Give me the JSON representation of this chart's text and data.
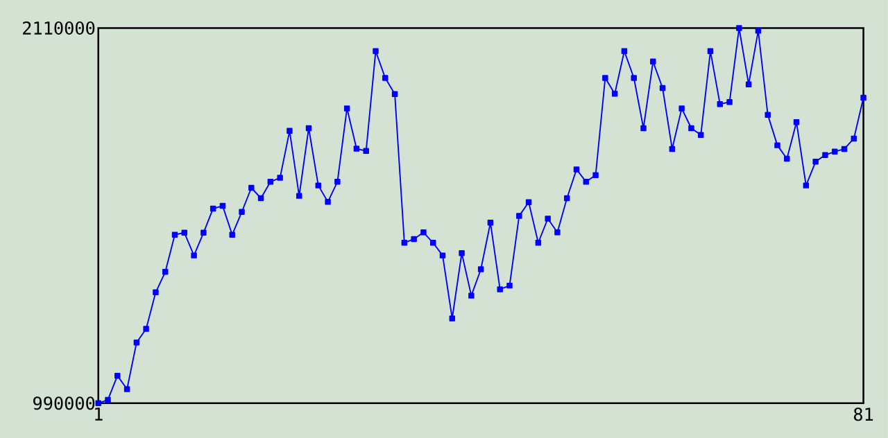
{
  "chart_data": {
    "type": "line",
    "x": [
      1,
      2,
      3,
      4,
      5,
      6,
      7,
      8,
      9,
      10,
      11,
      12,
      13,
      14,
      15,
      16,
      17,
      18,
      19,
      20,
      21,
      22,
      23,
      24,
      25,
      26,
      27,
      28,
      29,
      30,
      31,
      32,
      33,
      34,
      35,
      36,
      37,
      38,
      39,
      40,
      41,
      42,
      43,
      44,
      45,
      46,
      47,
      48,
      49,
      50,
      51,
      52,
      53,
      54,
      55,
      56,
      57,
      58,
      59,
      60,
      61,
      62,
      63,
      64,
      65,
      66,
      67,
      68,
      69,
      70,
      71,
      72,
      73,
      74,
      75,
      76,
      77,
      78,
      79,
      80,
      81
    ],
    "series": [
      {
        "color": "#0000ff",
        "values": [
          990000,
          1000000,
          1072000,
          1032000,
          1171000,
          1212000,
          1321000,
          1382000,
          1493000,
          1499000,
          1431000,
          1499000,
          1571000,
          1579000,
          1493000,
          1561000,
          1633000,
          1602000,
          1651000,
          1663000,
          1803000,
          1609000,
          1811000,
          1640000,
          1591000,
          1651000,
          1870000,
          1750000,
          1743000,
          2041000,
          1961000,
          1913000,
          1469000,
          1480000,
          1500000,
          1469000,
          1431000,
          1243000,
          1438000,
          1311000,
          1390000,
          1529000,
          1330000,
          1341000,
          1549000,
          1590000,
          1469000,
          1541000,
          1500000,
          1602000,
          1688000,
          1651000,
          1671000,
          1961000,
          1914000,
          2041000,
          1961000,
          1811000,
          2010000,
          1931000,
          1749000,
          1870000,
          1811000,
          1791000,
          2041000,
          1883000,
          1889000,
          2110000,
          1942000,
          2102000,
          1851000,
          1760000,
          1720000,
          1829000,
          1640000,
          1711000,
          1731000,
          1741000,
          1749000,
          1780000,
          1902000
        ]
      }
    ],
    "xlim": [
      1,
      81
    ],
    "xticks": [
      1,
      81
    ],
    "ylim": [
      990000,
      2110000
    ],
    "yticks": [
      990000,
      2110000
    ],
    "marker": "square",
    "line_style": "solid"
  }
}
